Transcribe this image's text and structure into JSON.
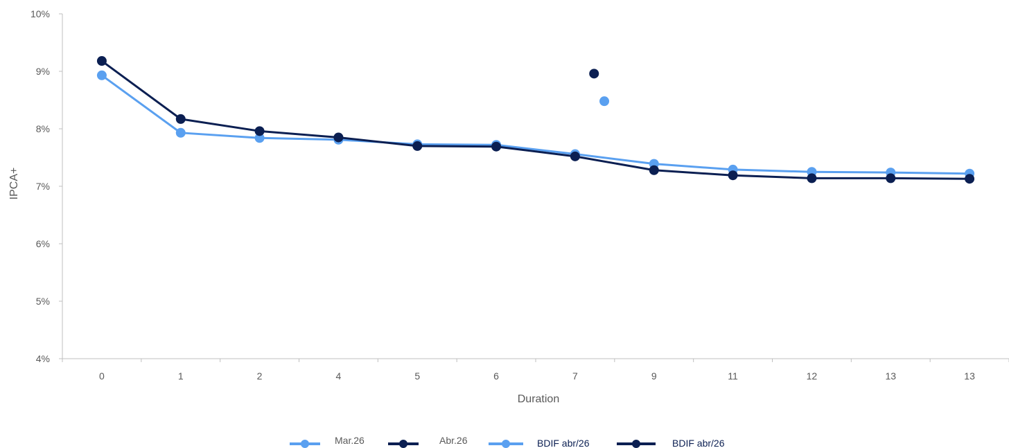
{
  "chart_data": {
    "type": "line",
    "title": "",
    "xlabel": "Duration",
    "ylabel": "IPCA+",
    "ylim": [
      0.04,
      0.1
    ],
    "yticks": [
      "4%",
      "5%",
      "6%",
      "7%",
      "8%",
      "9%",
      "10%"
    ],
    "categories": [
      "0",
      "1",
      "2",
      "4",
      "5",
      "6",
      "7",
      "9",
      "11",
      "12",
      "13",
      "13"
    ],
    "grid": false,
    "legend_position": "bottom",
    "series": [
      {
        "name": "Mar.26",
        "color": "#5aa0f0",
        "marker": "circle",
        "line": true,
        "values": [
          0.0893,
          0.0793,
          0.0784,
          0.0781,
          0.0773,
          0.0772,
          0.0756,
          0.0739,
          0.0729,
          0.0725,
          0.0724,
          0.0722
        ]
      },
      {
        "name": "Abr.26",
        "color": "#0b1f52",
        "marker": "circle",
        "line": true,
        "values": [
          0.0918,
          0.0817,
          0.0796,
          0.0785,
          0.077,
          0.0769,
          0.0752,
          0.0728,
          0.0719,
          0.0714,
          0.0714,
          0.0713
        ]
      },
      {
        "name": "BDIF abr/26",
        "color": "#5aa0f0",
        "marker": "circle",
        "line": false,
        "points": [
          {
            "x": 6.37,
            "y": 0.0848
          }
        ]
      },
      {
        "name": "BDIF abr/26",
        "color": "#0b1f52",
        "marker": "circle",
        "line": false,
        "points": [
          {
            "x": 6.24,
            "y": 0.0896
          }
        ]
      }
    ]
  }
}
